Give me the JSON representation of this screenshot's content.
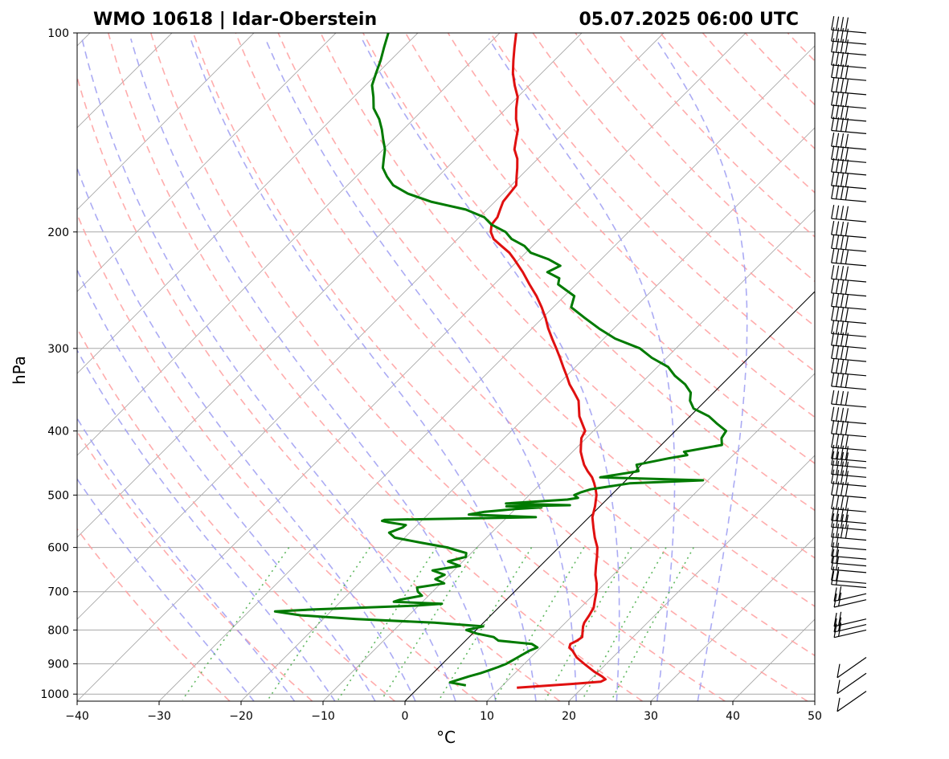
{
  "chart_data": {
    "type": "skew-t",
    "title_left": "WMO 10618 | Idar-Oberstein",
    "title_right": "05.07.2025 06:00 UTC",
    "xlabel": "°C",
    "ylabel": "hPa",
    "xlim": [
      -40,
      50
    ],
    "ylim": [
      1025,
      100
    ],
    "y_scale": "log",
    "x_ticks": [
      -40,
      -30,
      -20,
      -10,
      0,
      10,
      20,
      30,
      40,
      50
    ],
    "x_tick_labels": [
      "−40",
      "−30",
      "−20",
      "−10",
      "0",
      "10",
      "20",
      "30",
      "40",
      "50"
    ],
    "y_ticks": [
      1000,
      900,
      800,
      700,
      600,
      500,
      400,
      300,
      200,
      100
    ],
    "y_tick_labels": [
      "1000",
      "900",
      "800",
      "700",
      "600",
      "500",
      "400",
      "300",
      "200",
      "100"
    ],
    "grid": true,
    "colors": {
      "temperature": "#e01010",
      "dewpoint": "#007a00",
      "dry_adiabats": "#ff9e9e",
      "moist_adiabats": "#9c9cf2",
      "mixing_ratio": "#4fb04f",
      "isotherms": "#a8a8a8",
      "zero_isotherm": "#000000",
      "wind_barbs": "#000000"
    },
    "temperature_profile": {
      "pressure": [
        978,
        965,
        958,
        950,
        940,
        925,
        900,
        880,
        860,
        850,
        840,
        830,
        820,
        800,
        790,
        780,
        760,
        740,
        720,
        700,
        680,
        660,
        640,
        620,
        600,
        580,
        560,
        540,
        520,
        500,
        490,
        480,
        470,
        460,
        450,
        440,
        430,
        420,
        410,
        400,
        380,
        360,
        350,
        340,
        330,
        320,
        310,
        300,
        290,
        280,
        270,
        260,
        250,
        240,
        230,
        220,
        215,
        210,
        205,
        200,
        195,
        190,
        185,
        180,
        175,
        170,
        165,
        160,
        155,
        150,
        145,
        140,
        135,
        130,
        125,
        120,
        115,
        110,
        105,
        100
      ],
      "temperature": [
        12,
        18.5,
        21.5,
        21.8,
        21,
        19.5,
        17.3,
        15.6,
        14.3,
        13.5,
        13.2,
        13.6,
        13.8,
        13,
        12.6,
        12.3,
        12,
        11.6,
        10.8,
        10,
        9,
        7.8,
        6.8,
        5.8,
        4.7,
        3.2,
        1.8,
        0.4,
        -0.6,
        -1.8,
        -2.6,
        -3.5,
        -4.5,
        -5.8,
        -7,
        -8,
        -9,
        -9.8,
        -10.6,
        -11,
        -13.5,
        -15.5,
        -17,
        -18.6,
        -20,
        -21.5,
        -23,
        -24.6,
        -26.3,
        -28,
        -29.6,
        -31.4,
        -33.4,
        -35.7,
        -38,
        -40.6,
        -42,
        -43.8,
        -45.6,
        -46.8,
        -47.6,
        -47.8,
        -48.4,
        -49,
        -49.2,
        -49.4,
        -50.4,
        -51.4,
        -52.5,
        -54,
        -55,
        -56,
        -57.5,
        -58.8,
        -60,
        -61.8,
        -63.5,
        -65,
        -66.5,
        -68
      ]
    },
    "dewpoint_profile": {
      "pressure": [
        970,
        960,
        950,
        940,
        930,
        920,
        910,
        900,
        880,
        860,
        850,
        840,
        830,
        820,
        810,
        800,
        790,
        780,
        770,
        760,
        750,
        745,
        740,
        735,
        730,
        725,
        720,
        710,
        700,
        690,
        680,
        670,
        660,
        650,
        640,
        630,
        620,
        612,
        605,
        600,
        590,
        580,
        570,
        560,
        555,
        550,
        547,
        545,
        540,
        535,
        530,
        525,
        522,
        520,
        518,
        515,
        512,
        508,
        505,
        500,
        495,
        490,
        480,
        475,
        470,
        460,
        450,
        440,
        435,
        430,
        420,
        410,
        400,
        390,
        380,
        370,
        360,
        350,
        340,
        330,
        320,
        310,
        300,
        290,
        280,
        270,
        260,
        250,
        240,
        235,
        230,
        225,
        220,
        215,
        210,
        205,
        200,
        195,
        190,
        185,
        180,
        175,
        170,
        165,
        160,
        155,
        150,
        145,
        140,
        135,
        130,
        125,
        120,
        115,
        110,
        105,
        100
      ],
      "dewpoint": [
        5.5,
        3.2,
        4,
        4.8,
        5.8,
        6.5,
        7.2,
        7.8,
        8.4,
        9,
        9.6,
        8.5,
        4,
        3,
        0.5,
        -1.2,
        0.4,
        -6,
        -16,
        -23.2,
        -26.8,
        -22.5,
        -16.5,
        -10.5,
        -7.4,
        -13.5,
        -13,
        -10.8,
        -11.8,
        -12.4,
        -9.6,
        -11.2,
        -10.6,
        -12.6,
        -9.8,
        -11.8,
        -10.2,
        -10.6,
        -12.4,
        -13.6,
        -17.5,
        -21.2,
        -22.5,
        -21.5,
        -21.4,
        -23.8,
        -24.8,
        -24.6,
        -6.5,
        -15,
        -13.4,
        -10,
        -7,
        -11.4,
        -3.8,
        -11.8,
        -9,
        -4.8,
        -3.7,
        -4.5,
        -4,
        -3.2,
        0.8,
        9.4,
        -3.5,
        0.4,
        -0.6,
        2.5,
        4.4,
        3.6,
        7.4,
        6.5,
        6.2,
        4.2,
        2.3,
        -0.5,
        -1.9,
        -2.8,
        -4.5,
        -6.8,
        -8.7,
        -11.8,
        -14.4,
        -18.6,
        -21.8,
        -24.8,
        -27.8,
        -28.8,
        -32.2,
        -32.8,
        -35,
        -34.2,
        -36.4,
        -39.4,
        -41,
        -43.4,
        -45,
        -47.6,
        -49.4,
        -52.6,
        -57.8,
        -61.6,
        -64.4,
        -66.2,
        -67.8,
        -68.8,
        -69.8,
        -71.2,
        -72.6,
        -74.2,
        -76.2,
        -77.6,
        -79.2,
        -80.2,
        -81.2,
        -82.4,
        -83.6
      ]
    },
    "wind_barbs": {
      "pressure": [
        990,
        930,
        880,
        800,
        785,
        770,
        720,
        705,
        690,
        680,
        655,
        640,
        625,
        605,
        585,
        565,
        552,
        530,
        505,
        485,
        470,
        455,
        445,
        428,
        408,
        390,
        368,
        346,
        330,
        314,
        300,
        288,
        275,
        262,
        250,
        238,
        225,
        214,
        204,
        193,
        180,
        172,
        164,
        157,
        150,
        142,
        136,
        130,
        124,
        118,
        113,
        108,
        104,
        100
      ],
      "barb_count": 54
    },
    "mixing_ratio_lines_g_per_kg": [
      0.4,
      1,
      2,
      3,
      5,
      8,
      12,
      16,
      20
    ],
    "dry_adiabats_K": [
      250,
      260,
      270,
      280,
      290,
      300,
      310,
      320,
      330,
      340,
      350,
      360,
      370,
      380,
      390,
      400,
      410,
      420,
      430,
      440,
      450,
      460,
      470,
      480
    ],
    "moist_adiabats_C": [
      -20,
      -15,
      -10,
      -5,
      0,
      5,
      10,
      15,
      20,
      25,
      30,
      35
    ],
    "zero_isotherm": true
  }
}
